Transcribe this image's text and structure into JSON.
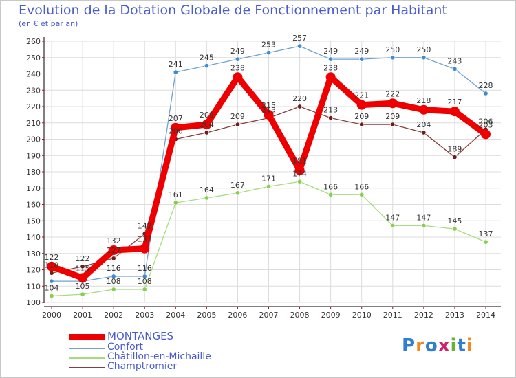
{
  "page": {
    "title": "Evolution de la Dotation Globale de Fonctionnement par Habitant",
    "subtitle": "(en € et par an)",
    "brand": "Proxiti"
  },
  "chart_data": {
    "type": "line",
    "title": "Evolution de la Dotation Globale de Fonctionnement par Habitant",
    "subtitle": "(en € et par an)",
    "xlabel": "",
    "ylabel": "",
    "ylim": [
      100,
      260
    ],
    "yticks": [
      100,
      110,
      120,
      130,
      140,
      150,
      160,
      170,
      180,
      190,
      200,
      210,
      220,
      230,
      240,
      250,
      260
    ],
    "grid": true,
    "legend_position": "bottom-left",
    "categories": [
      "2000",
      "2001",
      "2002",
      "2003",
      "2004",
      "2005",
      "2006",
      "2007",
      "2008",
      "2009",
      "2010",
      "2011",
      "2012",
      "2013",
      "2014"
    ],
    "series": [
      {
        "name": "Confort",
        "color": "#6fa2cf",
        "marker_color": "#3f8cd0",
        "values": [
          113,
          113,
          116,
          116,
          241,
          245,
          249,
          253,
          257,
          249,
          249,
          250,
          250,
          243,
          228
        ],
        "labels": [
          "",
          "",
          "116",
          "116",
          "241",
          "245",
          "249",
          "253",
          "257",
          "249",
          "249",
          "250",
          "250",
          "243",
          "228"
        ]
      },
      {
        "name": "Châtillon-en-Michaille",
        "color": "#a7dc7e",
        "marker_color": "#86cf4f",
        "values": [
          104,
          105,
          108,
          108,
          161,
          164,
          167,
          171,
          174,
          166,
          166,
          147,
          147,
          145,
          137
        ],
        "labels": [
          "104",
          "105",
          "108",
          "108",
          "161",
          "164",
          "167",
          "171",
          "174",
          "166",
          "166",
          "147",
          "147",
          "145",
          "137"
        ]
      },
      {
        "name": "Champtromier",
        "color": "#8a3b3b",
        "marker_color": "#6e1d1d",
        "values": [
          118,
          122,
          127,
          142,
          200,
          204,
          209,
          213,
          220,
          213,
          209,
          209,
          204,
          189,
          206
        ],
        "labels": [
          "118",
          "122",
          "127",
          "142",
          "200",
          "204",
          "209",
          "213",
          "220",
          "213",
          "209",
          "209",
          "204",
          "189",
          "206"
        ]
      },
      {
        "name": "MONTANGES",
        "color": "#ee0000",
        "marker_color": "#ee0000",
        "values": [
          122,
          115,
          132,
          133,
          207,
          209,
          238,
          215,
          181,
          238,
          221,
          222,
          218,
          217,
          203
        ],
        "labels": [
          "122",
          "115",
          "132",
          "133",
          "207",
          "209",
          "238",
          "215",
          "181",
          "238",
          "221",
          "222",
          "218",
          "217",
          "203"
        ]
      }
    ],
    "legend": [
      "MONTANGES",
      "Confort",
      "Châtillon-en-Michaille",
      "Champtromier"
    ]
  }
}
